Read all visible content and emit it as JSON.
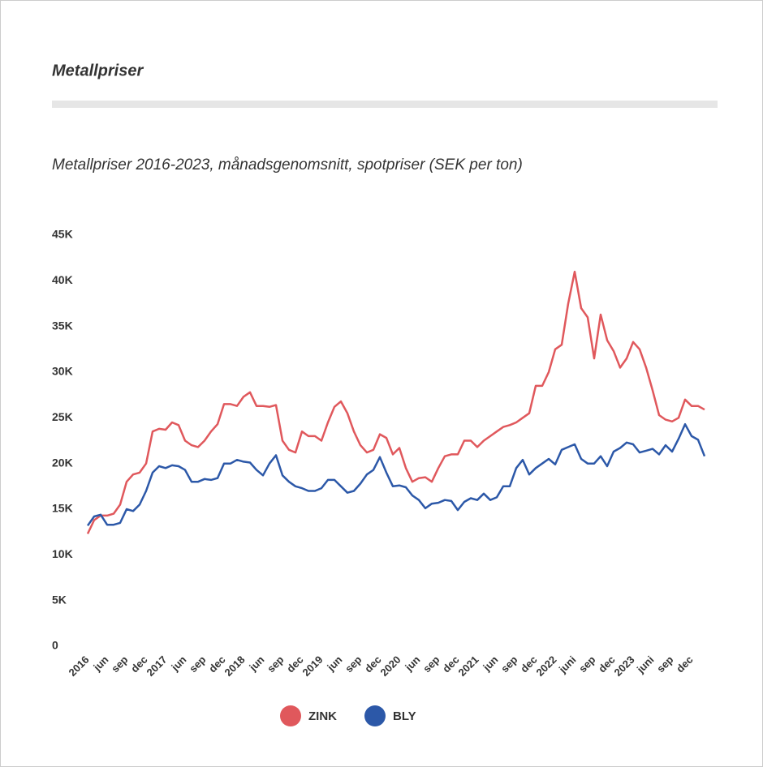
{
  "header": {
    "title": "Metallpriser"
  },
  "chart_data": {
    "type": "line",
    "title": "Metallpriser 2016-2023, månadsgenomsnitt, spotpriser (SEK per ton)",
    "categories": [
      "2016",
      null,
      null,
      "jun",
      null,
      null,
      "sep",
      null,
      null,
      "dec",
      null,
      null,
      "2017",
      null,
      null,
      "jun",
      null,
      null,
      "sep",
      null,
      null,
      "dec",
      null,
      null,
      "2018",
      null,
      null,
      "jun",
      null,
      null,
      "sep",
      null,
      null,
      "dec",
      null,
      null,
      "2019",
      null,
      null,
      "jun",
      null,
      null,
      "sep",
      null,
      null,
      "dec",
      null,
      null,
      "2020",
      null,
      null,
      "jun",
      null,
      null,
      "sep",
      null,
      null,
      "dec",
      null,
      null,
      "2021",
      null,
      null,
      "jun",
      null,
      null,
      "sep",
      null,
      null,
      "dec",
      null,
      null,
      "2022",
      null,
      null,
      "juni",
      null,
      null,
      "sep",
      null,
      null,
      "dec",
      null,
      null,
      "2023",
      null,
      null,
      "juni",
      null,
      null,
      "sep",
      null,
      null,
      "dec",
      null,
      null
    ],
    "series": [
      {
        "name": "ZINK",
        "color": "#e0585c",
        "values": [
          12300,
          13800,
          14300,
          14300,
          14500,
          15500,
          18000,
          18800,
          19000,
          20000,
          23500,
          23800,
          23700,
          24500,
          24200,
          22500,
          22000,
          21800,
          22500,
          23500,
          24300,
          26500,
          26500,
          26300,
          27300,
          27800,
          26300,
          26300,
          26200,
          26400,
          22500,
          21500,
          21200,
          23500,
          23000,
          23000,
          22500,
          24500,
          26200,
          26800,
          25500,
          23500,
          22000,
          21200,
          21500,
          23200,
          22800,
          21000,
          21700,
          19500,
          18000,
          18400,
          18500,
          18000,
          19500,
          20800,
          21000,
          21000,
          22500,
          22500,
          21800,
          22500,
          23000,
          23500,
          24000,
          24200,
          24500,
          25000,
          25500,
          28500,
          28500,
          30000,
          32500,
          33000,
          37500,
          41000,
          37000,
          36000,
          31500,
          36300,
          33500,
          32300,
          30500,
          31500,
          33300,
          32500,
          30500,
          28000,
          25300,
          24800,
          24600,
          25000,
          27000,
          26300,
          26300,
          25900
        ]
      },
      {
        "name": "BLY",
        "color": "#2c58a8",
        "values": [
          13200,
          14200,
          14400,
          13300,
          13300,
          13500,
          15000,
          14800,
          15500,
          17000,
          19000,
          19700,
          19500,
          19800,
          19700,
          19300,
          18000,
          18000,
          18300,
          18200,
          18400,
          20000,
          20000,
          20400,
          20200,
          20100,
          19300,
          18700,
          20000,
          20900,
          18700,
          18000,
          17500,
          17300,
          17000,
          17000,
          17300,
          18200,
          18200,
          17500,
          16800,
          17000,
          17800,
          18800,
          19300,
          20700,
          19000,
          17500,
          17600,
          17400,
          16500,
          16000,
          15100,
          15600,
          15700,
          16000,
          15900,
          14900,
          15800,
          16200,
          16000,
          16700,
          16000,
          16300,
          17500,
          17500,
          19500,
          20400,
          18800,
          19500,
          20000,
          20500,
          19900,
          21500,
          21800,
          22100,
          20500,
          20000,
          20000,
          20800,
          19700,
          21300,
          21700,
          22300,
          22100,
          21200,
          21400,
          21600,
          21000,
          22000,
          21300,
          22700,
          24300,
          23000,
          22600,
          20800
        ]
      }
    ],
    "ylim": [
      0,
      45000
    ],
    "yticks": [
      {
        "value": 0,
        "label": "0"
      },
      {
        "value": 5000,
        "label": "5K"
      },
      {
        "value": 10000,
        "label": "10K"
      },
      {
        "value": 15000,
        "label": "15K"
      },
      {
        "value": 20000,
        "label": "20K"
      },
      {
        "value": 25000,
        "label": "25K"
      },
      {
        "value": 30000,
        "label": "30K"
      },
      {
        "value": 35000,
        "label": "35K"
      },
      {
        "value": 40000,
        "label": "40K"
      },
      {
        "value": 45000,
        "label": "45K"
      }
    ],
    "legend": "bottom"
  }
}
